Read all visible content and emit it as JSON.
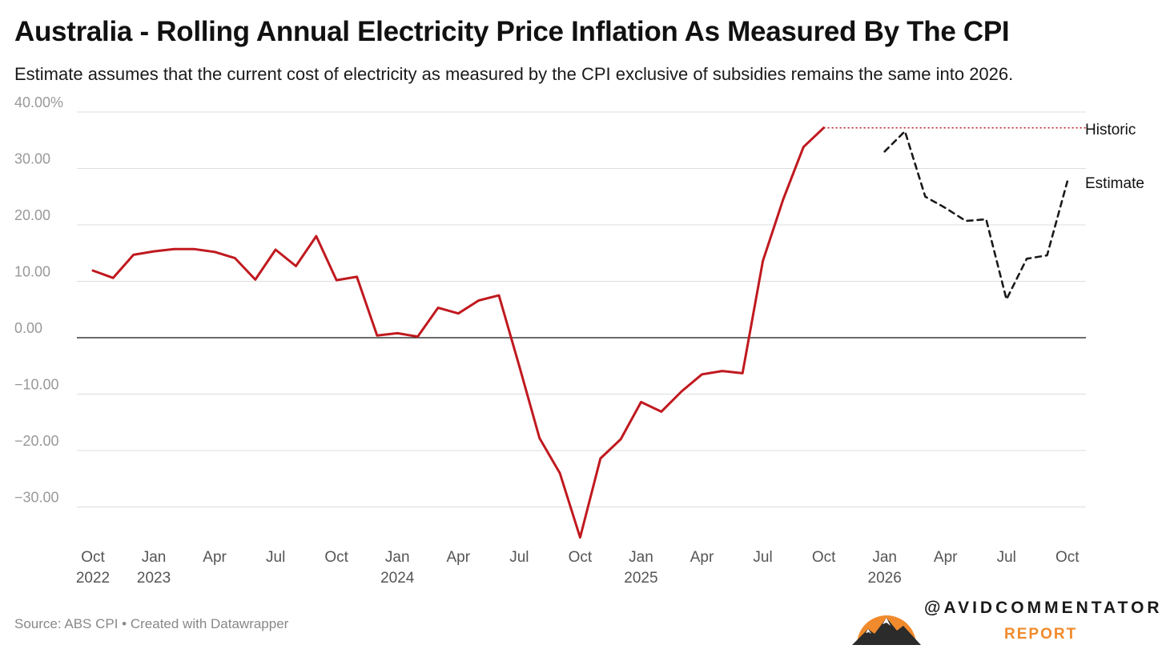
{
  "header": {
    "title": "Australia - Rolling Annual Electricity Price Inflation As Measured By The CPI",
    "subtitle": "Estimate assumes that the current cost of electricity as measured by the CPI exclusive of subsidies remains the same into 2026."
  },
  "footer": {
    "source": "Source: ABS CPI • Created with Datawrapper",
    "brand_name": "@AVIDCOMMENTATOR",
    "brand_sub": "REPORT"
  },
  "colors": {
    "historic": "#c0191f",
    "estimate": "#1a1a1a",
    "grid": "#dddddd",
    "zero_line": "#111111",
    "axis_text": "#999999",
    "brand_orange": "#f08a2c"
  },
  "chart_data": {
    "type": "line",
    "ylim": [
      -35,
      40
    ],
    "y_ticks": [
      {
        "value": 40,
        "label": "40.00%"
      },
      {
        "value": 30,
        "label": "30.00"
      },
      {
        "value": 20,
        "label": "20.00"
      },
      {
        "value": 10,
        "label": "10.00"
      },
      {
        "value": 0,
        "label": "0.00"
      },
      {
        "value": -10,
        "label": "−10.00"
      },
      {
        "value": -20,
        "label": "−20.00"
      },
      {
        "value": -30,
        "label": "−30.00"
      }
    ],
    "x_ticks": [
      {
        "month": "2022-10",
        "line1": "Oct",
        "line2": "2022"
      },
      {
        "month": "2023-01",
        "line1": "Jan",
        "line2": "2023"
      },
      {
        "month": "2023-04",
        "line1": "Apr",
        "line2": ""
      },
      {
        "month": "2023-07",
        "line1": "Jul",
        "line2": ""
      },
      {
        "month": "2023-10",
        "line1": "Oct",
        "line2": ""
      },
      {
        "month": "2024-01",
        "line1": "Jan",
        "line2": "2024"
      },
      {
        "month": "2024-04",
        "line1": "Apr",
        "line2": ""
      },
      {
        "month": "2024-07",
        "line1": "Jul",
        "line2": ""
      },
      {
        "month": "2024-10",
        "line1": "Oct",
        "line2": ""
      },
      {
        "month": "2025-01",
        "line1": "Jan",
        "line2": "2025"
      },
      {
        "month": "2025-04",
        "line1": "Apr",
        "line2": ""
      },
      {
        "month": "2025-07",
        "line1": "Jul",
        "line2": ""
      },
      {
        "month": "2025-10",
        "line1": "Oct",
        "line2": ""
      },
      {
        "month": "2026-01",
        "line1": "Jan",
        "line2": "2026"
      },
      {
        "month": "2026-04",
        "line1": "Apr",
        "line2": ""
      },
      {
        "month": "2026-07",
        "line1": "Jul",
        "line2": ""
      },
      {
        "month": "2026-10",
        "line1": "Oct",
        "line2": ""
      }
    ],
    "series": [
      {
        "name": "Historic",
        "style": "solid",
        "points": [
          {
            "x": "2022-10",
            "y": 11.9
          },
          {
            "x": "2022-11",
            "y": 10.6
          },
          {
            "x": "2022-12",
            "y": 14.7
          },
          {
            "x": "2023-01",
            "y": 15.3
          },
          {
            "x": "2023-02",
            "y": 15.7
          },
          {
            "x": "2023-03",
            "y": 15.7
          },
          {
            "x": "2023-04",
            "y": 15.2
          },
          {
            "x": "2023-05",
            "y": 14.1
          },
          {
            "x": "2023-06",
            "y": 10.3
          },
          {
            "x": "2023-07",
            "y": 15.6
          },
          {
            "x": "2023-08",
            "y": 12.7
          },
          {
            "x": "2023-09",
            "y": 18.0
          },
          {
            "x": "2023-10",
            "y": 10.2
          },
          {
            "x": "2023-11",
            "y": 10.8
          },
          {
            "x": "2023-12",
            "y": 0.4
          },
          {
            "x": "2024-01",
            "y": 0.8
          },
          {
            "x": "2024-02",
            "y": 0.2
          },
          {
            "x": "2024-03",
            "y": 5.3
          },
          {
            "x": "2024-04",
            "y": 4.3
          },
          {
            "x": "2024-05",
            "y": 6.6
          },
          {
            "x": "2024-06",
            "y": 7.5
          },
          {
            "x": "2024-07",
            "y": -5.0
          },
          {
            "x": "2024-08",
            "y": -17.8
          },
          {
            "x": "2024-09",
            "y": -24.0
          },
          {
            "x": "2024-10",
            "y": -35.4
          },
          {
            "x": "2024-11",
            "y": -21.4
          },
          {
            "x": "2024-12",
            "y": -18.0
          },
          {
            "x": "2025-01",
            "y": -11.4
          },
          {
            "x": "2025-02",
            "y": -13.1
          },
          {
            "x": "2025-03",
            "y": -9.5
          },
          {
            "x": "2025-04",
            "y": -6.5
          },
          {
            "x": "2025-05",
            "y": -5.9
          },
          {
            "x": "2025-06",
            "y": -6.3
          },
          {
            "x": "2025-07",
            "y": 13.6
          },
          {
            "x": "2025-08",
            "y": 24.5
          },
          {
            "x": "2025-09",
            "y": 33.8
          },
          {
            "x": "2025-10",
            "y": 37.2
          }
        ]
      },
      {
        "name": "Estimate",
        "style": "dashed",
        "points": [
          {
            "x": "2026-01",
            "y": 33.0
          },
          {
            "x": "2026-02",
            "y": 36.6
          },
          {
            "x": "2026-03",
            "y": 25.0
          },
          {
            "x": "2026-04",
            "y": 23.0
          },
          {
            "x": "2026-05",
            "y": 20.7
          },
          {
            "x": "2026-06",
            "y": 21.0
          },
          {
            "x": "2026-07",
            "y": 6.8
          },
          {
            "x": "2026-08",
            "y": 14.0
          },
          {
            "x": "2026-09",
            "y": 14.6
          },
          {
            "x": "2026-10",
            "y": 27.7
          }
        ]
      }
    ],
    "reference_line": {
      "y": 37.2,
      "from": "2025-10",
      "to": "end",
      "style": "dotted"
    }
  }
}
